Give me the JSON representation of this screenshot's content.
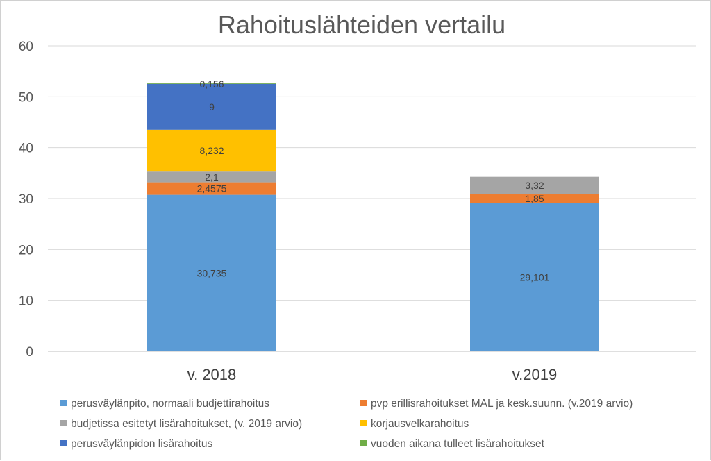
{
  "chart_data": {
    "type": "bar",
    "stacked": true,
    "title": "Rahoituslähteiden vertailu",
    "xlabel": "",
    "ylabel": "",
    "ylim": [
      0,
      60
    ],
    "yticks": [
      0,
      10,
      20,
      30,
      40,
      50,
      60
    ],
    "grid": true,
    "legend_position": "bottom",
    "categories": [
      "v. 2018",
      "v.2019"
    ],
    "series": [
      {
        "name": "perusväylänpito, normaali budjettirahoitus",
        "color": "#5b9bd5",
        "values": [
          30.735,
          29.101
        ],
        "labels": [
          "30,735",
          "29,101"
        ]
      },
      {
        "name": "pvp erillisrahoitukset MAL ja kesk.suunn. (v.2019 arvio)",
        "color": "#ed7d31",
        "values": [
          2.4575,
          1.85
        ],
        "labels": [
          "2,4575",
          "1,85"
        ]
      },
      {
        "name": "budjetissa esitetyt lisärahoitukset, (v. 2019 arvio)",
        "color": "#a5a5a5",
        "values": [
          2.1,
          3.32
        ],
        "labels": [
          "2,1",
          "3,32"
        ]
      },
      {
        "name": "korjausvelkarahoitus",
        "color": "#ffc000",
        "values": [
          8.232,
          0
        ],
        "labels": [
          "8,232",
          ""
        ]
      },
      {
        "name": "perusväylänpidon lisärahoitus",
        "color": "#4472c4",
        "values": [
          9,
          0
        ],
        "labels": [
          "9",
          ""
        ]
      },
      {
        "name": "vuoden aikana tulleet lisärahoitukset",
        "color": "#70ad47",
        "values": [
          0.156,
          0
        ],
        "labels": [
          "0,156",
          ""
        ]
      }
    ]
  }
}
